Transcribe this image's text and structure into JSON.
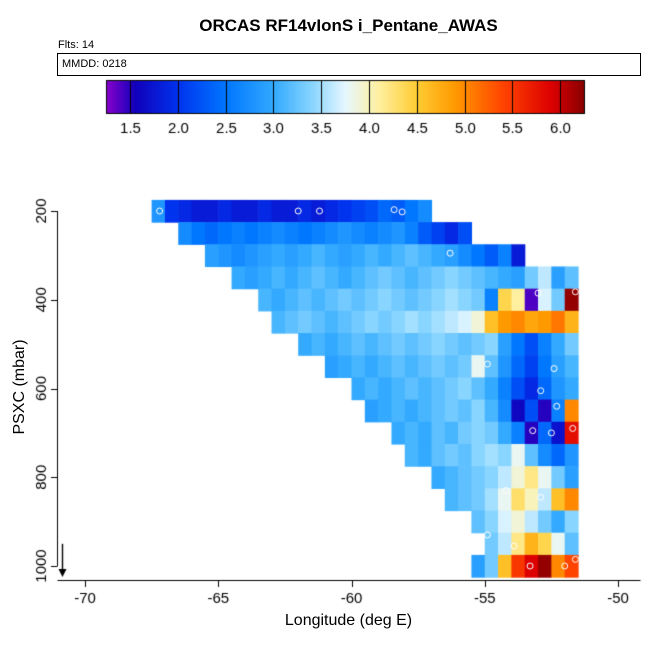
{
  "header": {
    "title": "ORCAS RF14vIonS i_Pentane_AWAS",
    "flts_label": "Flts: 14",
    "strip_label": "MMDD: 0218"
  },
  "chart_data": {
    "type": "heatmap",
    "title": "ORCAS RF14vIonS i_Pentane_AWAS",
    "xlabel": "Longitude (deg E)",
    "ylabel": "PSXC (mbar)",
    "x_ticks": [
      -70,
      -65,
      -60,
      -55,
      -50
    ],
    "y_ticks": [
      200,
      400,
      600,
      800,
      1000
    ],
    "xlim": [
      -71.1,
      -49.2
    ],
    "ylim": [
      1030,
      150
    ],
    "y_axis_inverted": true,
    "cell_size": {
      "dlon": 0.5,
      "dp": 50
    },
    "colorbar": {
      "domain": [
        1.25,
        6.25
      ],
      "ticks": [
        1.5,
        2.0,
        2.5,
        3.0,
        3.5,
        4.0,
        4.5,
        5.0,
        5.5,
        6.0
      ],
      "stops": [
        [
          1.25,
          "#8800CC"
        ],
        [
          1.55,
          "#1100BB"
        ],
        [
          2.0,
          "#0033EE"
        ],
        [
          2.5,
          "#0077FF"
        ],
        [
          3.0,
          "#33AAFF"
        ],
        [
          3.4,
          "#88D5FF"
        ],
        [
          3.75,
          "#E6F7FF"
        ],
        [
          4.1,
          "#FFF0A0"
        ],
        [
          4.5,
          "#FFCC33"
        ],
        [
          4.9,
          "#FF9900"
        ],
        [
          5.4,
          "#FF4400"
        ],
        [
          5.9,
          "#DD0000"
        ],
        [
          6.25,
          "#880000"
        ]
      ]
    },
    "rows": [
      {
        "p": 200,
        "lon0": -67.5,
        "values": [
          2.8,
          2.0,
          1.9,
          1.8,
          1.8,
          1.9,
          1.8,
          1.8,
          1.9,
          1.8,
          1.8,
          1.9,
          1.8,
          1.9,
          2.0,
          2.1,
          2.2,
          2.4,
          2.3,
          2.5,
          2.7
        ]
      },
      {
        "p": 250,
        "lon0": -66.5,
        "values": [
          2.7,
          2.5,
          2.4,
          2.5,
          2.6,
          2.5,
          2.6,
          2.7,
          2.6,
          2.5,
          2.6,
          2.7,
          2.8,
          2.7,
          2.6,
          2.7,
          2.8,
          2.6,
          2.3,
          2.1,
          1.9,
          2.2
        ]
      },
      {
        "p": 300,
        "lon0": -65.5,
        "values": [
          2.9,
          2.8,
          2.7,
          2.8,
          2.9,
          3.0,
          2.9,
          3.0,
          3.1,
          3.0,
          2.9,
          3.0,
          3.1,
          3.0,
          3.1,
          3.2,
          3.1,
          3.0,
          2.9,
          2.7,
          2.5,
          2.3,
          2.6,
          1.8
        ]
      },
      {
        "p": 350,
        "lon0": -64.5,
        "values": [
          3.0,
          2.9,
          3.0,
          3.1,
          3.0,
          3.1,
          3.2,
          3.1,
          3.0,
          3.1,
          3.2,
          3.3,
          3.2,
          3.1,
          3.2,
          3.3,
          3.4,
          3.3,
          3.2,
          3.1,
          3.0,
          2.9,
          3.3,
          3.6,
          2.9,
          3.2
        ]
      },
      {
        "p": 400,
        "lon0": -63.5,
        "values": [
          3.1,
          3.0,
          3.1,
          3.2,
          3.1,
          3.2,
          3.3,
          3.2,
          3.3,
          3.4,
          3.3,
          3.2,
          3.3,
          3.4,
          3.5,
          3.4,
          3.3,
          2.6,
          4.4,
          4.1,
          1.4,
          3.7,
          3.3,
          6.2
        ]
      },
      {
        "p": 450,
        "lon0": -63.0,
        "values": [
          3.1,
          3.2,
          3.3,
          3.2,
          3.1,
          3.2,
          3.3,
          3.4,
          3.3,
          3.4,
          3.5,
          3.4,
          3.5,
          3.6,
          3.7,
          3.9,
          4.6,
          4.9,
          5.0,
          4.8,
          4.9,
          5.1,
          4.7
        ]
      },
      {
        "p": 500,
        "lon0": -62.0,
        "values": [
          3.0,
          3.1,
          3.0,
          3.1,
          3.2,
          3.1,
          3.2,
          3.3,
          3.2,
          3.3,
          3.4,
          3.3,
          3.2,
          3.3,
          3.4,
          2.9,
          2.5,
          2.2,
          2.6,
          3.0,
          3.3
        ]
      },
      {
        "p": 550,
        "lon0": -61.0,
        "values": [
          2.9,
          3.0,
          3.1,
          3.0,
          3.1,
          3.2,
          3.1,
          3.2,
          3.3,
          3.2,
          3.3,
          3.8,
          3.2,
          2.8,
          2.4,
          2.1,
          2.5,
          2.9,
          3.1
        ]
      },
      {
        "p": 600,
        "lon0": -60.0,
        "values": [
          3.0,
          3.1,
          3.0,
          3.1,
          3.2,
          3.1,
          3.2,
          3.3,
          3.4,
          3.2,
          3.0,
          2.6,
          2.2,
          1.9,
          2.4,
          2.8,
          3.0
        ]
      },
      {
        "p": 650,
        "lon0": -59.5,
        "values": [
          2.9,
          3.0,
          3.1,
          3.0,
          3.1,
          3.2,
          3.3,
          3.2,
          3.4,
          3.1,
          2.7,
          1.6,
          2.2,
          1.5,
          2.6,
          5.0
        ]
      },
      {
        "p": 700,
        "lon0": -58.5,
        "values": [
          3.0,
          3.1,
          3.0,
          3.2,
          3.1,
          3.3,
          3.4,
          3.3,
          3.0,
          2.6,
          1.5,
          2.4,
          1.7,
          5.8
        ]
      },
      {
        "p": 750,
        "lon0": -58.0,
        "values": [
          3.1,
          3.0,
          3.2,
          3.3,
          3.2,
          3.4,
          3.5,
          3.4,
          3.8,
          3.2,
          2.7,
          2.4,
          2.8
        ]
      },
      {
        "p": 800,
        "lon0": -57.0,
        "values": [
          3.0,
          3.1,
          3.2,
          3.3,
          3.4,
          3.6,
          3.9,
          4.2,
          3.8,
          3.3,
          2.9
        ]
      },
      {
        "p": 850,
        "lon0": -56.5,
        "values": [
          3.1,
          3.2,
          3.3,
          3.5,
          3.8,
          4.3,
          4.0,
          3.6,
          4.6,
          5.0
        ]
      },
      {
        "p": 900,
        "lon0": -55.5,
        "values": [
          3.2,
          3.4,
          3.7,
          3.9,
          3.6,
          3.3,
          3.0,
          3.4
        ]
      },
      {
        "p": 950,
        "lon0": -55.0,
        "values": [
          3.3,
          3.6,
          4.2,
          4.7,
          4.4,
          3.8,
          3.2
        ]
      },
      {
        "p": 1000,
        "lon0": -55.5,
        "values": [
          2.9,
          3.3,
          4.6,
          5.5,
          5.9,
          6.2,
          5.0,
          5.4
        ]
      }
    ],
    "points": [
      [
        -67.2,
        200
      ],
      [
        -62.0,
        200
      ],
      [
        -61.2,
        200
      ],
      [
        -58.4,
        197
      ],
      [
        -58.1,
        202
      ],
      [
        -56.3,
        295
      ],
      [
        -53.0,
        385
      ],
      [
        -51.6,
        382
      ],
      [
        -54.9,
        545
      ],
      [
        -52.4,
        555
      ],
      [
        -52.9,
        605
      ],
      [
        -52.3,
        640
      ],
      [
        -53.2,
        695
      ],
      [
        -52.5,
        700
      ],
      [
        -51.7,
        690
      ],
      [
        -54.2,
        830
      ],
      [
        -52.9,
        845
      ],
      [
        -54.9,
        930
      ],
      [
        -53.9,
        955
      ],
      [
        -53.3,
        1000
      ],
      [
        -52.0,
        1000
      ],
      [
        -51.6,
        985
      ]
    ],
    "arrow": {
      "lon": -70.85,
      "p_from": 950,
      "p_to": 1025
    }
  }
}
